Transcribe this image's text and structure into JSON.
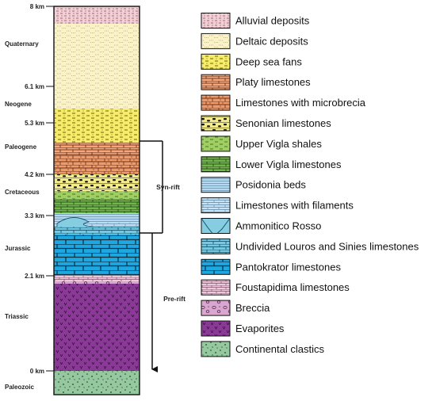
{
  "colors": {
    "alluvial": "#f4cfd6",
    "deltaic": "#fbf3c6",
    "deep_sea_fans": "#f7ec6a",
    "platy": "#f6a679",
    "microbrecia": "#ef9a6a",
    "senonian": "#f4ec8a",
    "upper_vigla": "#9fcf62",
    "lower_vigla": "#6fb64b",
    "posidonia": "#b6d9ef",
    "filaments": "#c9e3f3",
    "ammonitico": "#86cde2",
    "louros": "#75c8df",
    "pantokrator": "#1ea8e1",
    "foustapidima": "#ecc8dc",
    "breccia": "#d9a6cf",
    "evaporites": "#8a3a96",
    "clastics": "#96c8a0"
  },
  "periods": [
    {
      "id": "quaternary",
      "label": "Quaternary"
    },
    {
      "id": "neogene",
      "label": "Neogene"
    },
    {
      "id": "paleogene",
      "label": "Paleogene"
    },
    {
      "id": "cretaceous",
      "label": "Cretaceous"
    },
    {
      "id": "jurassic",
      "label": "Jurassic"
    },
    {
      "id": "triassic",
      "label": "Triassic"
    },
    {
      "id": "paleozoic",
      "label": "Paleozoic"
    }
  ],
  "depths": [
    {
      "id": "8",
      "label": "8 km"
    },
    {
      "id": "6-1",
      "label": "6.1 km"
    },
    {
      "id": "5-3",
      "label": "5.3 km"
    },
    {
      "id": "4-2",
      "label": "4.2 km"
    },
    {
      "id": "3-3",
      "label": "3.3 km"
    },
    {
      "id": "2-1",
      "label": "2.1 km"
    },
    {
      "id": "0",
      "label": "0 km"
    }
  ],
  "phases": {
    "syn_rift": "Syn-rift",
    "pre_rift": "Pre-rift"
  },
  "legend": [
    {
      "key": "alluvial",
      "label": "Alluvial deposits",
      "icon": "alluvial-swatch"
    },
    {
      "key": "deltaic",
      "label": "Deltaic deposits",
      "icon": "deltaic-swatch"
    },
    {
      "key": "deep_sea_fans",
      "label": "Deep sea fans",
      "icon": "deep-sea-fans-swatch"
    },
    {
      "key": "platy",
      "label": "Platy limestones",
      "icon": "platy-swatch"
    },
    {
      "key": "microbrecia",
      "label": "Limestones with microbrecia",
      "icon": "microbrecia-swatch"
    },
    {
      "key": "senonian",
      "label": "Senonian limestones",
      "icon": "senonian-swatch"
    },
    {
      "key": "upper_vigla",
      "label": "Upper Vigla shales",
      "icon": "upper-vigla-swatch"
    },
    {
      "key": "lower_vigla",
      "label": "Lower Vigla limestones",
      "icon": "lower-vigla-swatch"
    },
    {
      "key": "posidonia",
      "label": "Posidonia beds",
      "icon": "posidonia-swatch"
    },
    {
      "key": "filaments",
      "label": "Limestones with filaments",
      "icon": "filaments-swatch"
    },
    {
      "key": "ammonitico",
      "label": "Ammonitico Rosso",
      "icon": "ammonitico-swatch"
    },
    {
      "key": "louros",
      "label": "Undivided Louros and Sinies limestones",
      "icon": "louros-swatch"
    },
    {
      "key": "pantokrator",
      "label": "Pantokrator limestones",
      "icon": "pantokrator-swatch"
    },
    {
      "key": "foustapidima",
      "label": "Foustapidima limestones",
      "icon": "foustapidima-swatch"
    },
    {
      "key": "breccia",
      "label": "Breccia",
      "icon": "breccia-swatch"
    },
    {
      "key": "evaporites",
      "label": "Evaporites",
      "icon": "evaporites-swatch"
    },
    {
      "key": "clastics",
      "label": "Continental clastics",
      "icon": "clastics-swatch"
    }
  ]
}
